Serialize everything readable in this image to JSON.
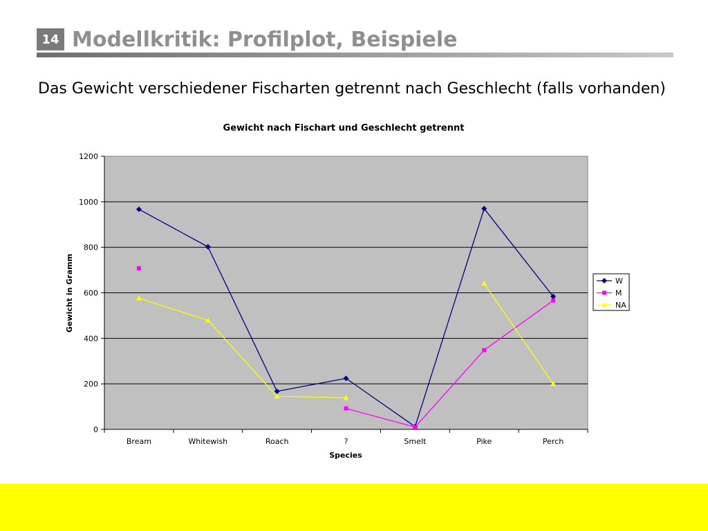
{
  "slide": {
    "number": "14",
    "title": "Modellkritik: Profilplot, Beispiele",
    "subtitle": "Das Gewicht verschiedener Fischarten getrennt nach Geschlecht (falls vorhanden)"
  },
  "colors": {
    "title_text": "#8f8f8f",
    "number_box": "#7a7a7a",
    "plot_background": "#c0c0c0",
    "footer_band": "#ffff00",
    "series_W": "#000080",
    "series_M": "#ff00ff",
    "series_NA": "#ffff00"
  },
  "chart_data": {
    "type": "line",
    "title": "Gewicht nach Fischart und Geschlecht getrennt",
    "xlabel": "Species",
    "ylabel": "Gewicht in Gramm",
    "categories": [
      "Bream",
      "Whitewish",
      "Roach",
      "?",
      "Smelt",
      "Pike",
      "Perch"
    ],
    "ylim": [
      0,
      1200
    ],
    "yticks": [
      0,
      200,
      400,
      600,
      800,
      1000,
      1200
    ],
    "grid": true,
    "legend_position": "right",
    "series": [
      {
        "name": "W",
        "marker": "diamond",
        "color": "#000080",
        "values": [
          967,
          802,
          167,
          224,
          12,
          970,
          584
        ]
      },
      {
        "name": "M",
        "marker": "square",
        "color": "#ff00ff",
        "values": [
          708,
          null,
          null,
          92,
          10,
          348,
          566
        ]
      },
      {
        "name": "NA",
        "marker": "triangle",
        "color": "#ffff00",
        "values": [
          576,
          479,
          145,
          139,
          null,
          641,
          200
        ]
      }
    ]
  }
}
